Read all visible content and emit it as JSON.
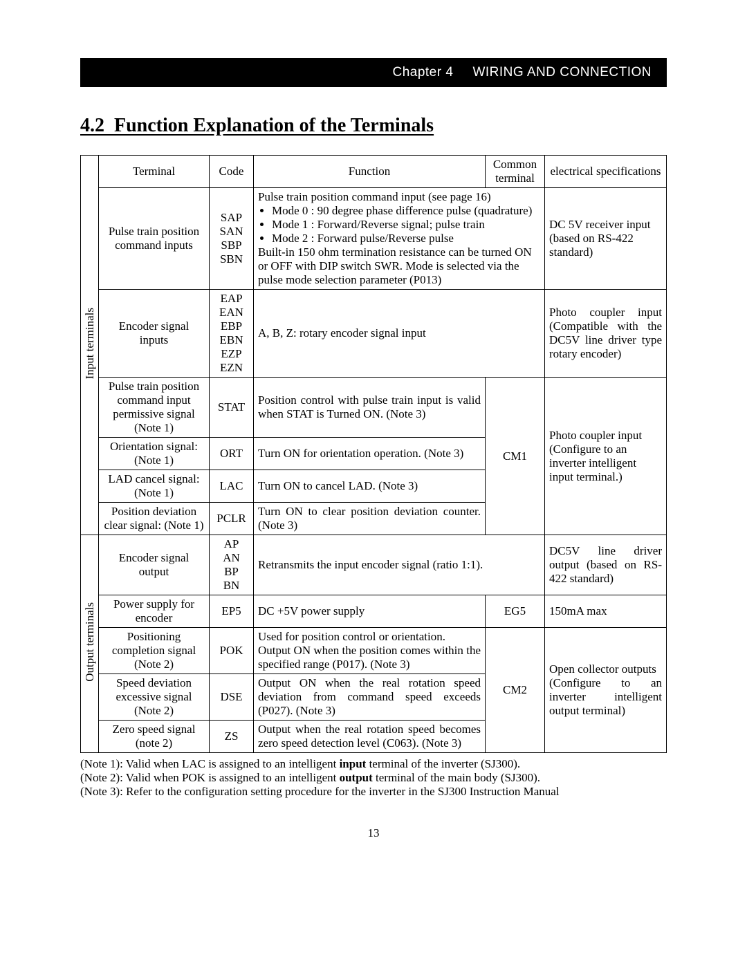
{
  "header": {
    "chapter": "Chapter 4",
    "title": "WIRING AND CONNECTION"
  },
  "section": {
    "number": "4.2",
    "title": "Function Explanation of the Terminals"
  },
  "table": {
    "headers": {
      "terminal": "Terminal",
      "code": "Code",
      "function": "Function",
      "common": "Common terminal",
      "spec": "electrical specifications"
    },
    "groups": {
      "input": "Input terminals",
      "output": "Output terminals"
    },
    "rows": {
      "r1": {
        "terminal": "Pulse train position command inputs",
        "code": "SAP\nSAN\nSBP\nSBN",
        "func_lead": "Pulse train position command input (see page 16)",
        "func_modes": [
          "Mode 0 : 90 degree phase difference pulse (quadrature)",
          "Mode 1 : Forward/Reverse signal; pulse train",
          "Mode 2 : Forward pulse/Reverse pulse"
        ],
        "func_tail": "Built-in 150 ohm termination resistance can be turned ON or OFF with DIP switch SWR. Mode is selected via the pulse mode selection parameter (P013)",
        "spec": "DC 5V receiver input (based on RS-422 standard)"
      },
      "r2": {
        "terminal": "Encoder signal inputs",
        "code": "EAP\nEAN\nEBP\nEBN\nEZP\nEZN",
        "func": "A, B, Z: rotary encoder signal input",
        "spec": "Photo coupler input (Compatible with the DC5V line driver type rotary encoder)"
      },
      "r3": {
        "terminal": "Pulse train position command input permissive signal (Note 1)",
        "code": "STAT",
        "func": "Position control with pulse train input is valid when STAT is Turned ON. (Note 3)"
      },
      "r4": {
        "terminal": "Orientation signal: (Note 1)",
        "code": "ORT",
        "func": "Turn ON for orientation operation. (Note 3)"
      },
      "r5": {
        "terminal": "LAD cancel signal: (Note 1)",
        "code": "LAC",
        "func": "Turn ON to cancel LAD. (Note 3)"
      },
      "r6": {
        "terminal": "Position deviation clear signal: (Note 1)",
        "code": "PCLR",
        "func": "Turn ON to clear position deviation counter. (Note 3)"
      },
      "r3_common": "CM1",
      "r3_spec": "Photo coupler input (Configure to an inverter intelligent input terminal.)",
      "r7": {
        "terminal": "Encoder signal output",
        "code": "AP\nAN\nBP\nBN",
        "func": "Retransmits the input encoder signal (ratio 1:1).",
        "spec": "DC5V line driver output (based on RS-422 standard)"
      },
      "r8": {
        "terminal": "Power supply for encoder",
        "code": "EP5",
        "func": "DC +5V power supply",
        "common": "EG5",
        "spec": "150mA max"
      },
      "r9": {
        "terminal": "Positioning completion signal (Note 2)",
        "code": "POK",
        "func": "Used for position control or orientation.\nOutput ON when the position comes within the specified range (P017). (Note 3)"
      },
      "r10": {
        "terminal": "Speed deviation excessive signal (Note 2)",
        "code": "DSE",
        "func": "Output ON when the real rotation speed deviation from command speed exceeds (P027).  (Note 3)"
      },
      "r11": {
        "terminal": "Zero speed signal (note 2)",
        "code": "ZS",
        "func": "Output when the real rotation speed becomes zero speed detection level (C063).  (Note 3)"
      },
      "r9_common": "CM2",
      "r9_spec": "Open collector outputs\n(Configure to an inverter intelligent output terminal)"
    }
  },
  "notes": {
    "n1": "(Note 1): Valid when LAC is assigned to an intelligent input terminal of the inverter (SJ300).",
    "n2": "(Note 2): Valid when POK is assigned to an intelligent output terminal of the main body (SJ300).",
    "n3": "(Note 3): Refer to the configuration setting procedure for the inverter in the SJ300 Instruction Manual"
  },
  "pagenum": "13"
}
